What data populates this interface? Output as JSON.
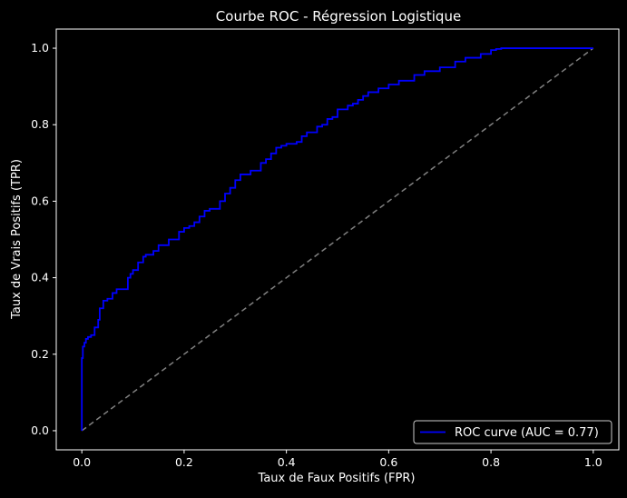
{
  "chart_data": {
    "type": "line",
    "title": "Courbe ROC - Régression Logistique",
    "xlabel": "Taux de Faux Positifs (FPR)",
    "ylabel": "Taux de Vrais Positifs (TPR)",
    "xlim": [
      -0.05,
      1.05
    ],
    "ylim": [
      -0.05,
      1.05
    ],
    "xticks": [
      0.0,
      0.2,
      0.4,
      0.6,
      0.8,
      1.0
    ],
    "yticks": [
      0.0,
      0.2,
      0.4,
      0.6,
      0.8,
      1.0
    ],
    "xtick_labels": [
      "0.0",
      "0.2",
      "0.4",
      "0.6",
      "0.8",
      "1.0"
    ],
    "ytick_labels": [
      "0.0",
      "0.2",
      "0.4",
      "0.6",
      "0.8",
      "1.0"
    ],
    "grid": false,
    "legend_position": "bottom-right",
    "series": [
      {
        "name": "ROC curve (AUC = 0.77)",
        "color": "#0000ff",
        "style": "solid",
        "x": [
          0.0,
          0.0,
          0.002,
          0.005,
          0.008,
          0.012,
          0.018,
          0.025,
          0.032,
          0.035,
          0.042,
          0.05,
          0.06,
          0.068,
          0.08,
          0.09,
          0.095,
          0.1,
          0.11,
          0.12,
          0.125,
          0.14,
          0.15,
          0.17,
          0.19,
          0.2,
          0.21,
          0.22,
          0.23,
          0.24,
          0.25,
          0.27,
          0.28,
          0.29,
          0.3,
          0.31,
          0.33,
          0.35,
          0.36,
          0.37,
          0.38,
          0.39,
          0.4,
          0.42,
          0.43,
          0.44,
          0.46,
          0.47,
          0.48,
          0.49,
          0.5,
          0.52,
          0.53,
          0.54,
          0.55,
          0.56,
          0.58,
          0.6,
          0.62,
          0.65,
          0.67,
          0.7,
          0.73,
          0.75,
          0.78,
          0.8,
          0.81,
          0.82,
          1.0
        ],
        "y": [
          0.0,
          0.19,
          0.22,
          0.23,
          0.24,
          0.245,
          0.25,
          0.27,
          0.29,
          0.32,
          0.34,
          0.345,
          0.36,
          0.37,
          0.37,
          0.4,
          0.41,
          0.42,
          0.44,
          0.455,
          0.46,
          0.47,
          0.485,
          0.5,
          0.52,
          0.53,
          0.535,
          0.545,
          0.56,
          0.575,
          0.58,
          0.6,
          0.62,
          0.635,
          0.655,
          0.67,
          0.68,
          0.7,
          0.71,
          0.725,
          0.74,
          0.745,
          0.75,
          0.755,
          0.77,
          0.78,
          0.795,
          0.8,
          0.815,
          0.82,
          0.84,
          0.85,
          0.855,
          0.865,
          0.875,
          0.885,
          0.895,
          0.905,
          0.915,
          0.93,
          0.94,
          0.95,
          0.965,
          0.975,
          0.985,
          0.995,
          0.998,
          1.0,
          1.0
        ]
      },
      {
        "name": "",
        "color": "#808080",
        "style": "dashed",
        "x": [
          0.0,
          1.0
        ],
        "y": [
          0.0,
          1.0
        ]
      }
    ]
  }
}
